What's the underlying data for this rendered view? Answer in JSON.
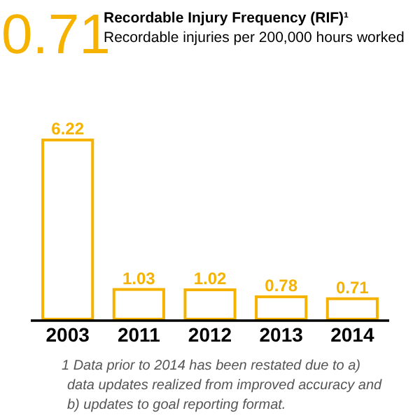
{
  "chart_data": {
    "type": "bar",
    "title": "Recordable Injury Frequency (RIF)¹",
    "subtitle": "Recordable injuries per 200,000 hours worked",
    "categories": [
      "2003",
      "2011",
      "2012",
      "2013",
      "2014"
    ],
    "values": [
      6.22,
      1.03,
      1.02,
      0.78,
      0.71
    ],
    "color": "#f5b300",
    "data_labels": true,
    "annotations": [
      "0.71",
      "1 Data prior to 2014 has been restated due to a) data updates realized from improved accuracy and b) updates to goal reporting format."
    ]
  }
}
